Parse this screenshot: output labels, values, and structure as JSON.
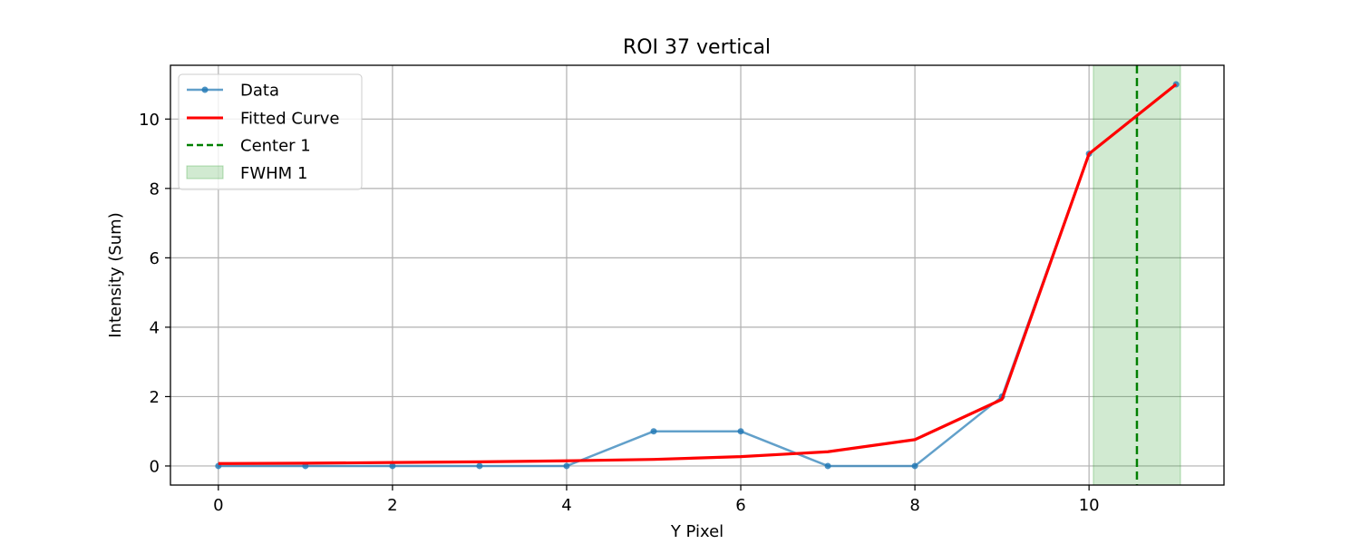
{
  "chart_data": {
    "type": "line",
    "title": "ROI 37 vertical",
    "xlabel": "Y Pixel",
    "ylabel": "Intensity (Sum)",
    "xlim": [
      -0.55,
      11.55
    ],
    "ylim": [
      -0.55,
      11.55
    ],
    "xticks": [
      0,
      2,
      4,
      6,
      8,
      10
    ],
    "yticks": [
      0,
      2,
      4,
      6,
      8,
      10
    ],
    "grid": true,
    "legend_position": "top-left",
    "series": [
      {
        "name": "Data",
        "color": "#1f77b4",
        "style": "line-with-markers",
        "x": [
          0,
          1,
          2,
          3,
          4,
          5,
          6,
          7,
          8,
          9,
          10,
          11
        ],
        "y": [
          0,
          0,
          0,
          0,
          0,
          1,
          1,
          0,
          0,
          2,
          9,
          11
        ]
      },
      {
        "name": "Fitted Curve",
        "color": "#ff0000",
        "style": "line",
        "x": [
          0,
          1,
          2,
          3,
          4,
          5,
          6,
          7,
          8,
          9,
          10,
          11
        ],
        "y": [
          0.07,
          0.08,
          0.1,
          0.12,
          0.15,
          0.19,
          0.27,
          0.41,
          0.76,
          1.92,
          9.0,
          11.0
        ]
      }
    ],
    "center": {
      "name": "Center 1",
      "x": 10.55,
      "color": "#008000"
    },
    "fwhm": {
      "name": "FWHM 1",
      "x_range": [
        10.05,
        11.05
      ],
      "color": "#2ca02c"
    }
  }
}
